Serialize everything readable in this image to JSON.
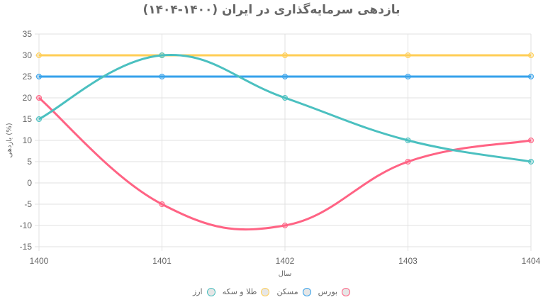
{
  "chart_data": {
    "type": "line",
    "title": "بازدهی سرمایه‌گذاری در ایران (۱۴۰۰-۱۴۰۴)",
    "xlabel": "سال",
    "ylabel": "بازدهی (%)",
    "categories": [
      "1400",
      "1401",
      "1402",
      "1403",
      "1404"
    ],
    "ylim": [
      -15,
      35
    ],
    "yticks": [
      "35",
      "30",
      "25",
      "20",
      "15",
      "10",
      "5",
      "0",
      "-5",
      "-10",
      "-15"
    ],
    "grid": true,
    "legend_position": "bottom",
    "series": [
      {
        "name": "بورس",
        "color": "#FF6384",
        "values": [
          20,
          -5,
          -10,
          5,
          10
        ]
      },
      {
        "name": "مسکن",
        "color": "#36A2EB",
        "values": [
          25,
          25,
          25,
          25,
          25
        ]
      },
      {
        "name": "طلا و سکه",
        "color": "#FFCE56",
        "values": [
          30,
          30,
          30,
          30,
          30
        ]
      },
      {
        "name": "ارز",
        "color": "#4BC0C0",
        "values": [
          15,
          30,
          20,
          10,
          5
        ]
      }
    ]
  }
}
